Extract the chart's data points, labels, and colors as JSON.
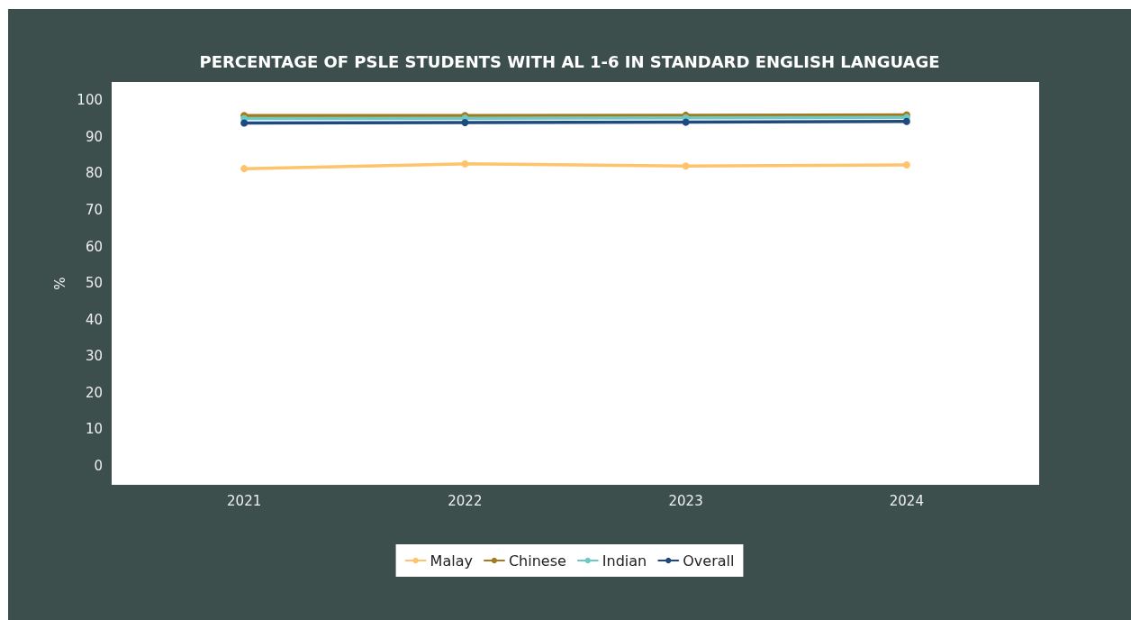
{
  "chart_data": {
    "type": "line",
    "title": "PERCENTAGE OF PSLE STUDENTS WITH AL 1-6 IN STANDARD ENGLISH LANGUAGE",
    "ylabel": "%",
    "x": [
      2021,
      2022,
      2023,
      2024
    ],
    "xlim": [
      2020.4,
      2024.6
    ],
    "xticks": [
      2021,
      2022,
      2023,
      2024
    ],
    "ylim": [
      -5.2,
      105
    ],
    "yticks": [
      0,
      10,
      20,
      30,
      40,
      50,
      60,
      70,
      80,
      90,
      100
    ],
    "series": [
      {
        "name": "Malay",
        "color": "#ffc36b",
        "values": [
          81.3,
          82.6,
          82.0,
          82.3
        ]
      },
      {
        "name": "Chinese",
        "color": "#a47a1c",
        "values": [
          95.8,
          95.8,
          95.9,
          96.0
        ]
      },
      {
        "name": "Indian",
        "color": "#6cc9c4",
        "values": [
          95.0,
          95.1,
          95.2,
          95.3
        ]
      },
      {
        "name": "Overall",
        "color": "#1f4a80",
        "values": [
          93.8,
          93.9,
          94.0,
          94.2
        ]
      }
    ],
    "legend": "bottom",
    "marker": "circle",
    "line_style": "solid",
    "grid": false
  }
}
